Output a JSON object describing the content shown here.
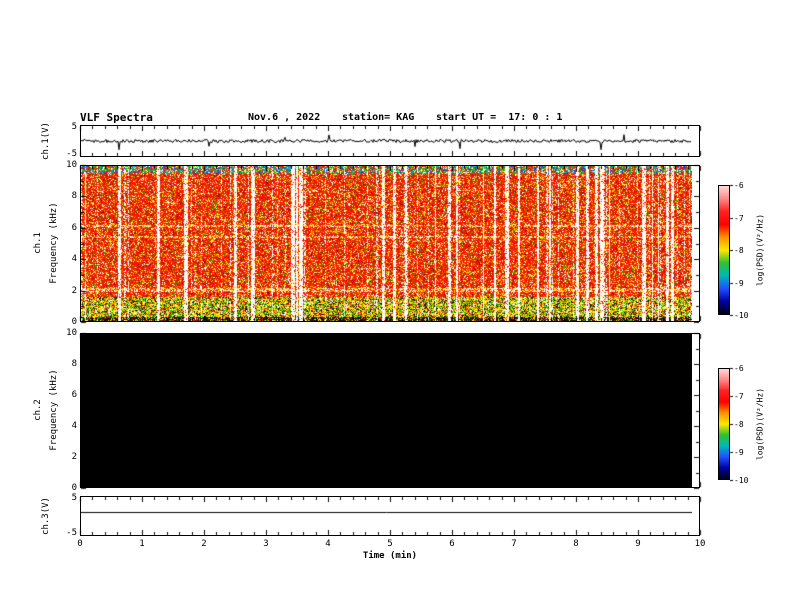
{
  "header": {
    "title": "VLF Spectra",
    "date": "Nov.6 , 2022",
    "station": "station= KAG",
    "start_ut": "start UT =  17: 0 : 1"
  },
  "panels": {
    "ch1_wave": {
      "label": "ch.1(V)",
      "ytick_top": "5",
      "ytick_bottom": "-5"
    },
    "ch1_spec": {
      "channel": "ch.1",
      "ylabel": "Frequency (kHz)",
      "yticks": [
        "10",
        "8",
        "6",
        "4",
        "2",
        "0"
      ]
    },
    "ch2_spec": {
      "channel": "ch.2",
      "ylabel": "Frequency (kHz)",
      "yticks": [
        "10",
        "8",
        "6",
        "4",
        "2",
        "0"
      ]
    },
    "ch3_wave": {
      "label": "ch.3(V)",
      "ytick_top": "5",
      "ytick_bottom": "-5"
    }
  },
  "xaxis": {
    "ticks": [
      "0",
      "1",
      "2",
      "3",
      "4",
      "5",
      "6",
      "7",
      "8",
      "9",
      "10"
    ],
    "label": "Time (min)"
  },
  "colorbar": {
    "ticks": [
      "-6",
      "-7",
      "-8",
      "-9",
      "-10"
    ],
    "label": "log(PSD)(V²/Hz)",
    "gradient": [
      "#ffd8d8",
      "#ff8888",
      "#ff2020",
      "#ff0000",
      "#ff9000",
      "#ffe800",
      "#30c030",
      "#00b8b8",
      "#2050ff",
      "#0000a0",
      "#000018"
    ]
  },
  "spec_palette": {
    "red": "#f01800",
    "dark_red": "#880800",
    "orange": "#ff7800",
    "yellow": "#ffe000",
    "green": "#28b800",
    "cyan": "#00b8b8",
    "blue": "#2038e8",
    "dark": "#181008",
    "white": "#ffffff"
  },
  "chart_data": [
    {
      "type": "line",
      "title": "ch.1 waveform",
      "ylabel": "ch.1(V)",
      "ylim": [
        -5,
        5
      ],
      "xlim": [
        0,
        10
      ],
      "xlabel": "Time (min)",
      "description": "Continuous broadband noise trace around 0 V, amplitude mostly within ±1 V with frequent small spikes, spanning 0 to ~9.85 min"
    },
    {
      "type": "heatmap",
      "title": "ch.1 spectrogram",
      "ylabel": "ch.1 Frequency (kHz)",
      "ylim": [
        0,
        10
      ],
      "xlim": [
        0,
        10
      ],
      "zlabel": "log(PSD)(V²/Hz)",
      "zlim": [
        -10,
        -6
      ],
      "description": "Strong broadband emission (red/orange, PSD near -6 to -7) across 0-10 kHz for the whole interval, interrupted by many narrow vertical white dropout stripes; yellow/green mottled band below ~1.5 kHz; nearly black band at 0-0.3 kHz; green/cyan/blue speckle along the top edge near 10 kHz; faint lighter horizontal lines near 2, 5.4 and 6.1 kHz"
    },
    {
      "type": "heatmap",
      "title": "ch.2 spectrogram",
      "ylabel": "ch.2 Frequency (kHz)",
      "ylim": [
        0,
        10
      ],
      "xlim": [
        0,
        10
      ],
      "zlabel": "log(PSD)(V²/Hz)",
      "zlim": [
        -10,
        -6
      ],
      "description": "No signal: uniform minimum power (solid black, <= -10) over all frequencies 0-10 kHz and all times"
    },
    {
      "type": "line",
      "title": "ch.3 waveform",
      "ylabel": "ch.3(V)",
      "ylim": [
        -5,
        5
      ],
      "xlim": [
        0,
        10
      ],
      "description": "Perfectly flat horizontal line at approximately +1 V for the whole interval"
    }
  ]
}
